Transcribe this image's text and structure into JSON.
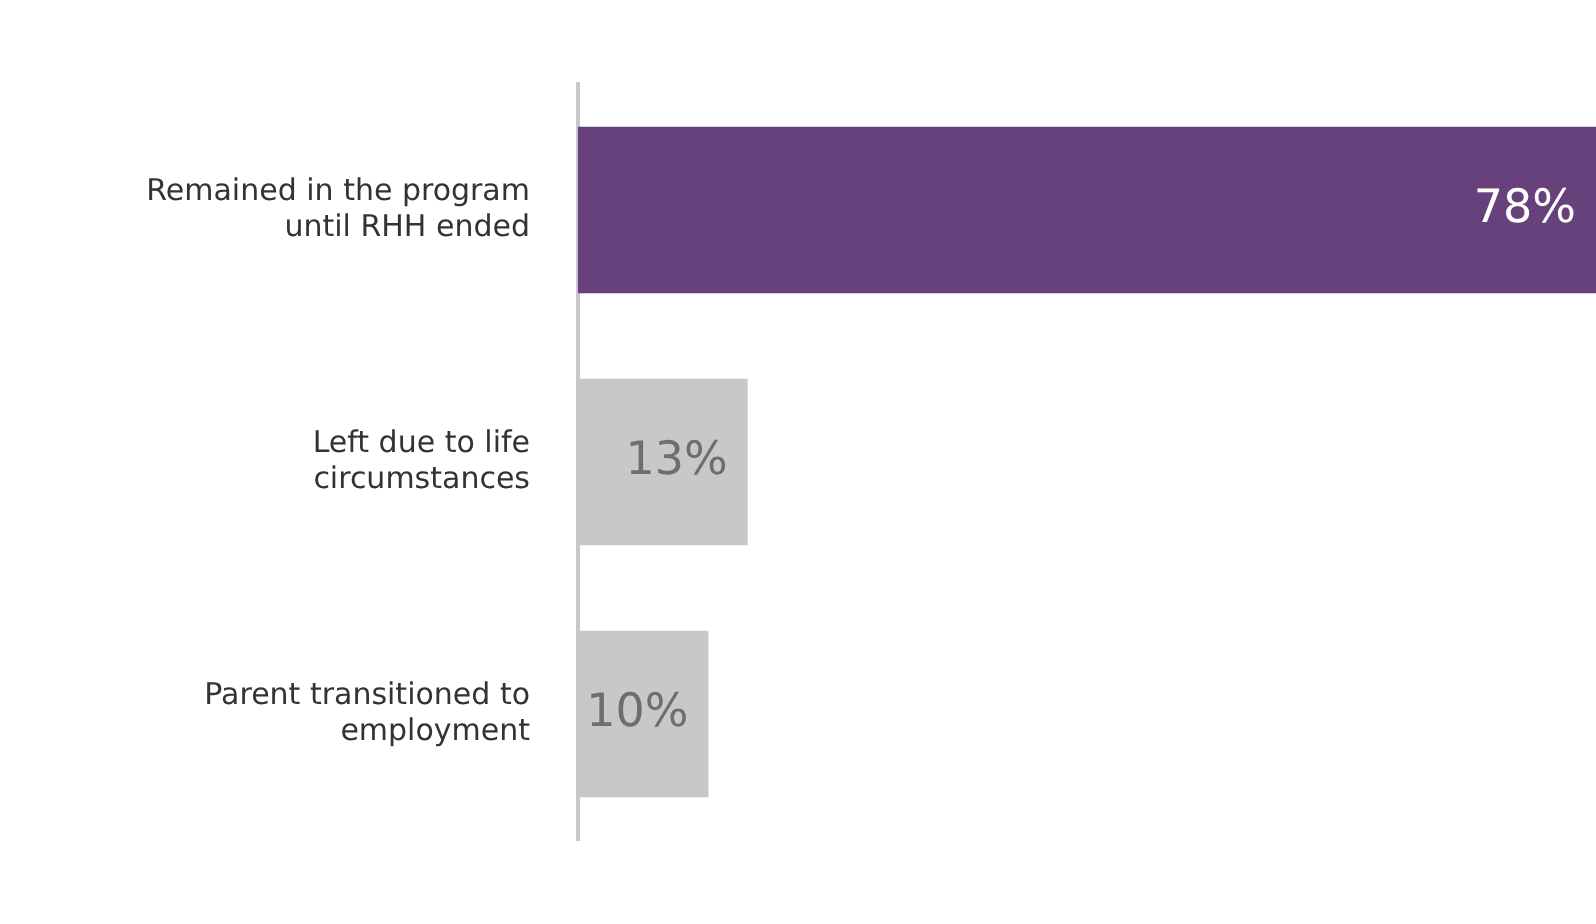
{
  "chart_data": {
    "type": "bar",
    "orientation": "horizontal",
    "categories": [
      "Remained in the program until RHH ended",
      "Left due to life circumstances",
      "Parent transitioned to employment"
    ],
    "values": [
      78,
      13,
      10
    ],
    "colors": [
      "#67417c",
      "#c8c8c8",
      "#c8c8c8"
    ],
    "value_labels": [
      "78%",
      "13%",
      "10%"
    ],
    "grid": false,
    "legend": false
  }
}
